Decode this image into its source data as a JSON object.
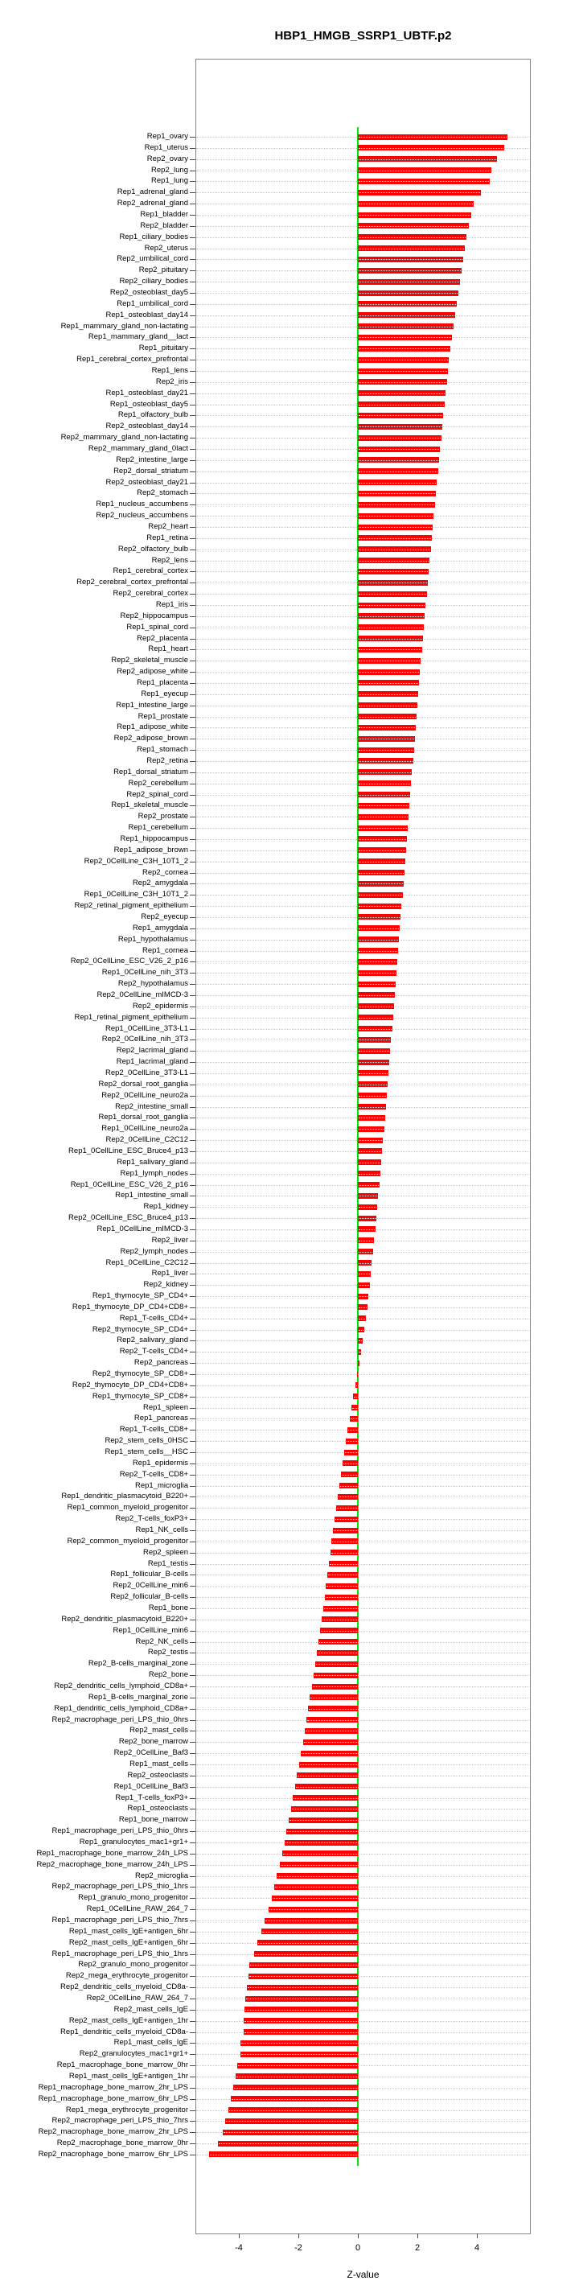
{
  "title": "HBP1_HMGB_SSRP1_UBTF.p2",
  "chart_data": {
    "type": "bar",
    "orientation": "horizontal",
    "title": "HBP1_HMGB_SSRP1_UBTF.p2",
    "xlabel": "Z-value",
    "xlim": [
      -5.45,
      5.8
    ],
    "xticks": [
      -4,
      -2,
      0,
      2,
      4
    ],
    "grid": "dotted-row-leaders",
    "legend": "none",
    "sort_order": "descending",
    "bar_color": "#fe0000",
    "zero_line_color": "#00e400",
    "categories": [
      "Rep1_ovary",
      "Rep1_uterus",
      "Rep2_ovary",
      "Rep2_lung",
      "Rep1_lung",
      "Rep1_adrenal_gland",
      "Rep2_adrenal_gland",
      "Rep1_bladder",
      "Rep2_bladder",
      "Rep1_ciliary_bodies",
      "Rep2_uterus",
      "Rep2_umbilical_cord",
      "Rep2_pituitary",
      "Rep2_ciliary_bodies",
      "Rep2_osteoblast_day5",
      "Rep1_umbilical_cord",
      "Rep1_osteoblast_day14",
      "Rep1_mammary_gland_non-lactating",
      "Rep1_mammary_gland__lact",
      "Rep1_pituitary",
      "Rep1_cerebral_cortex_prefrontal",
      "Rep1_lens",
      "Rep2_iris",
      "Rep1_osteoblast_day21",
      "Rep1_osteoblast_day5",
      "Rep1_olfactory_bulb",
      "Rep2_osteoblast_day14",
      "Rep2_mammary_gland_non-lactating",
      "Rep2_mammary_gland_0lact",
      "Rep2_intestine_large",
      "Rep2_dorsal_striatum",
      "Rep2_osteoblast_day21",
      "Rep2_stomach",
      "Rep1_nucleus_accumbens",
      "Rep2_nucleus_accumbens",
      "Rep2_heart",
      "Rep1_retina",
      "Rep2_olfactory_bulb",
      "Rep2_lens",
      "Rep1_cerebral_cortex",
      "Rep2_cerebral_cortex_prefrontal",
      "Rep2_cerebral_cortex",
      "Rep1_iris",
      "Rep2_hippocampus",
      "Rep1_spinal_cord",
      "Rep2_placenta",
      "Rep1_heart",
      "Rep2_skeletal_muscle",
      "Rep2_adipose_white",
      "Rep1_placenta",
      "Rep1_eyecup",
      "Rep1_intestine_large",
      "Rep1_prostate",
      "Rep1_adipose_white",
      "Rep2_adipose_brown",
      "Rep1_stomach",
      "Rep2_retina",
      "Rep1_dorsal_striatum",
      "Rep2_cerebellum",
      "Rep2_spinal_cord",
      "Rep1_skeletal_muscle",
      "Rep2_prostate",
      "Rep1_cerebellum",
      "Rep1_hippocampus",
      "Rep1_adipose_brown",
      "Rep2_0CellLine_C3H_10T1_2",
      "Rep2_cornea",
      "Rep2_amygdala",
      "Rep1_0CellLine_C3H_10T1_2",
      "Rep2_retinal_pigment_epithelium",
      "Rep2_eyecup",
      "Rep1_amygdala",
      "Rep1_hypothalamus",
      "Rep1_cornea",
      "Rep2_0CellLine_ESC_V26_2_p16",
      "Rep1_0CellLine_nih_3T3",
      "Rep2_hypothalamus",
      "Rep2_0CellLine_mIMCD-3",
      "Rep2_epidermis",
      "Rep1_retinal_pigment_epithelium",
      "Rep1_0CellLine_3T3-L1",
      "Rep2_0CellLine_nih_3T3",
      "Rep2_lacrimal_gland",
      "Rep1_lacrimal_gland",
      "Rep2_0CellLine_3T3-L1",
      "Rep2_dorsal_root_ganglia",
      "Rep2_0CellLine_neuro2a",
      "Rep2_intestine_small",
      "Rep1_dorsal_root_ganglia",
      "Rep1_0CellLine_neuro2a",
      "Rep2_0CellLine_C2C12",
      "Rep1_0CellLine_ESC_Bruce4_p13",
      "Rep1_salivary_gland",
      "Rep1_lymph_nodes",
      "Rep1_0CellLine_ESC_V26_2_p16",
      "Rep1_intestine_small",
      "Rep1_kidney",
      "Rep2_0CellLine_ESC_Bruce4_p13",
      "Rep1_0CellLine_mIMCD-3",
      "Rep2_liver",
      "Rep2_lymph_nodes",
      "Rep1_0CellLine_C2C12",
      "Rep1_liver",
      "Rep2_kidney",
      "Rep1_thymocyte_SP_CD4+",
      "Rep1_thymocyte_DP_CD4+CD8+",
      "Rep1_T-cells_CD4+",
      "Rep2_thymocyte_SP_CD4+",
      "Rep2_salivary_gland",
      "Rep2_T-cells_CD4+",
      "Rep2_pancreas",
      "Rep2_thymocyte_SP_CD8+",
      "Rep2_thymocyte_DP_CD4+CD8+",
      "Rep1_thymocyte_SP_CD8+",
      "Rep1_spleen",
      "Rep1_pancreas",
      "Rep1_T-cells_CD8+",
      "Rep2_stem_cells_0HSC",
      "Rep1_stem_cells__HSC",
      "Rep1_epidermis",
      "Rep2_T-cells_CD8+",
      "Rep1_microglia",
      "Rep1_dendritic_plasmacytoid_B220+",
      "Rep1_common_myeloid_progenitor",
      "Rep2_T-cells_foxP3+",
      "Rep1_NK_cells",
      "Rep2_common_myeloid_progenitor",
      "Rep2_spleen",
      "Rep1_testis",
      "Rep1_follicular_B-cells",
      "Rep2_0CellLine_min6",
      "Rep2_follicular_B-cells",
      "Rep1_bone",
      "Rep2_dendritic_plasmacytoid_B220+",
      "Rep1_0CellLine_min6",
      "Rep2_NK_cells",
      "Rep2_testis",
      "Rep2_B-cells_marginal_zone",
      "Rep2_bone",
      "Rep2_dendritic_cells_lymphoid_CD8a+",
      "Rep1_B-cells_marginal_zone",
      "Rep1_dendritic_cells_lymphoid_CD8a+",
      "Rep2_macrophage_peri_LPS_thio_0hrs",
      "Rep2_mast_cells",
      "Rep2_bone_marrow",
      "Rep2_0CellLine_Baf3",
      "Rep1_mast_cells",
      "Rep2_osteoclasts",
      "Rep1_0CellLine_Baf3",
      "Rep1_T-cells_foxP3+",
      "Rep1_osteoclasts",
      "Rep1_bone_marrow",
      "Rep1_macrophage_peri_LPS_thio_0hrs",
      "Rep1_granulocytes_mac1+gr1+",
      "Rep1_macrophage_bone_marrow_24h_LPS",
      "Rep2_macrophage_bone_marrow_24h_LPS",
      "Rep2_microglia",
      "Rep2_macrophage_peri_LPS_thio_1hrs",
      "Rep1_granulo_mono_progenitor",
      "Rep1_0CellLine_RAW_264_7",
      "Rep1_macrophage_peri_LPS_thio_7hrs",
      "Rep1_mast_cells_IgE+antigen_6hr",
      "Rep2_mast_cells_IgE+antigen_6hr",
      "Rep1_macrophage_peri_LPS_thio_1hrs",
      "Rep2_granulo_mono_progenitor",
      "Rep2_mega_erythrocyte_progenitor",
      "Rep2_dendritic_cells_myeloid_CD8a-",
      "Rep2_0CellLine_RAW_264_7",
      "Rep2_mast_cells_IgE",
      "Rep2_mast_cells_IgE+antigen_1hr",
      "Rep1_dendritic_cells_myeloid_CD8a-",
      "Rep1_mast_cells_IgE",
      "Rep2_granulocytes_mac1+gr1+",
      "Rep1_macrophage_bone_marrow_0hr",
      "Rep1_mast_cells_IgE+antigen_1hr",
      "Rep1_macrophage_bone_marrow_2hr_LPS",
      "Rep1_macrophage_bone_marrow_6hr_LPS",
      "Rep1_mega_erythrocyte_progenitor",
      "Rep2_macrophage_peri_LPS_thio_7hrs",
      "Rep2_macrophage_bone_marrow_2hr_LPS",
      "Rep2_macrophage_bone_marrow_0hr",
      "Rep2_macrophage_bone_marrow_6hr_LPS"
    ],
    "values": [
      5.02,
      4.93,
      4.67,
      4.48,
      4.43,
      4.13,
      3.88,
      3.8,
      3.72,
      3.64,
      3.59,
      3.53,
      3.48,
      3.42,
      3.37,
      3.31,
      3.26,
      3.21,
      3.15,
      3.1,
      3.06,
      3.02,
      2.99,
      2.95,
      2.91,
      2.87,
      2.83,
      2.8,
      2.76,
      2.72,
      2.69,
      2.65,
      2.62,
      2.58,
      2.55,
      2.52,
      2.48,
      2.45,
      2.41,
      2.38,
      2.35,
      2.32,
      2.28,
      2.25,
      2.22,
      2.19,
      2.15,
      2.12,
      2.09,
      2.06,
      2.03,
      2.0,
      1.97,
      1.94,
      1.91,
      1.88,
      1.85,
      1.82,
      1.79,
      1.76,
      1.73,
      1.7,
      1.67,
      1.64,
      1.62,
      1.59,
      1.56,
      1.53,
      1.5,
      1.47,
      1.44,
      1.41,
      1.38,
      1.35,
      1.33,
      1.3,
      1.27,
      1.24,
      1.21,
      1.18,
      1.15,
      1.12,
      1.09,
      1.06,
      1.03,
      1.0,
      0.97,
      0.94,
      0.91,
      0.88,
      0.85,
      0.81,
      0.78,
      0.75,
      0.72,
      0.68,
      0.65,
      0.62,
      0.58,
      0.55,
      0.51,
      0.47,
      0.44,
      0.4,
      0.36,
      0.31,
      0.26,
      0.22,
      0.17,
      0.12,
      0.05,
      -0.02,
      -0.09,
      -0.16,
      -0.22,
      -0.28,
      -0.34,
      -0.4,
      -0.46,
      -0.52,
      -0.57,
      -0.62,
      -0.68,
      -0.73,
      -0.78,
      -0.83,
      -0.88,
      -0.93,
      -0.97,
      -1.02,
      -1.07,
      -1.12,
      -1.17,
      -1.22,
      -1.28,
      -1.33,
      -1.38,
      -1.44,
      -1.49,
      -1.55,
      -1.61,
      -1.67,
      -1.73,
      -1.79,
      -1.85,
      -1.91,
      -1.98,
      -2.05,
      -2.11,
      -2.18,
      -2.25,
      -2.32,
      -2.4,
      -2.47,
      -2.55,
      -2.63,
      -2.72,
      -2.8,
      -2.9,
      -3.0,
      -3.13,
      -3.25,
      -3.38,
      -3.5,
      -3.65,
      -3.67,
      -3.73,
      -3.79,
      -3.8,
      -3.84,
      -3.85,
      -3.95,
      -3.96,
      -4.05,
      -4.12,
      -4.2,
      -4.28,
      -4.35,
      -4.45,
      -4.55,
      -4.7,
      -5.0
    ]
  }
}
